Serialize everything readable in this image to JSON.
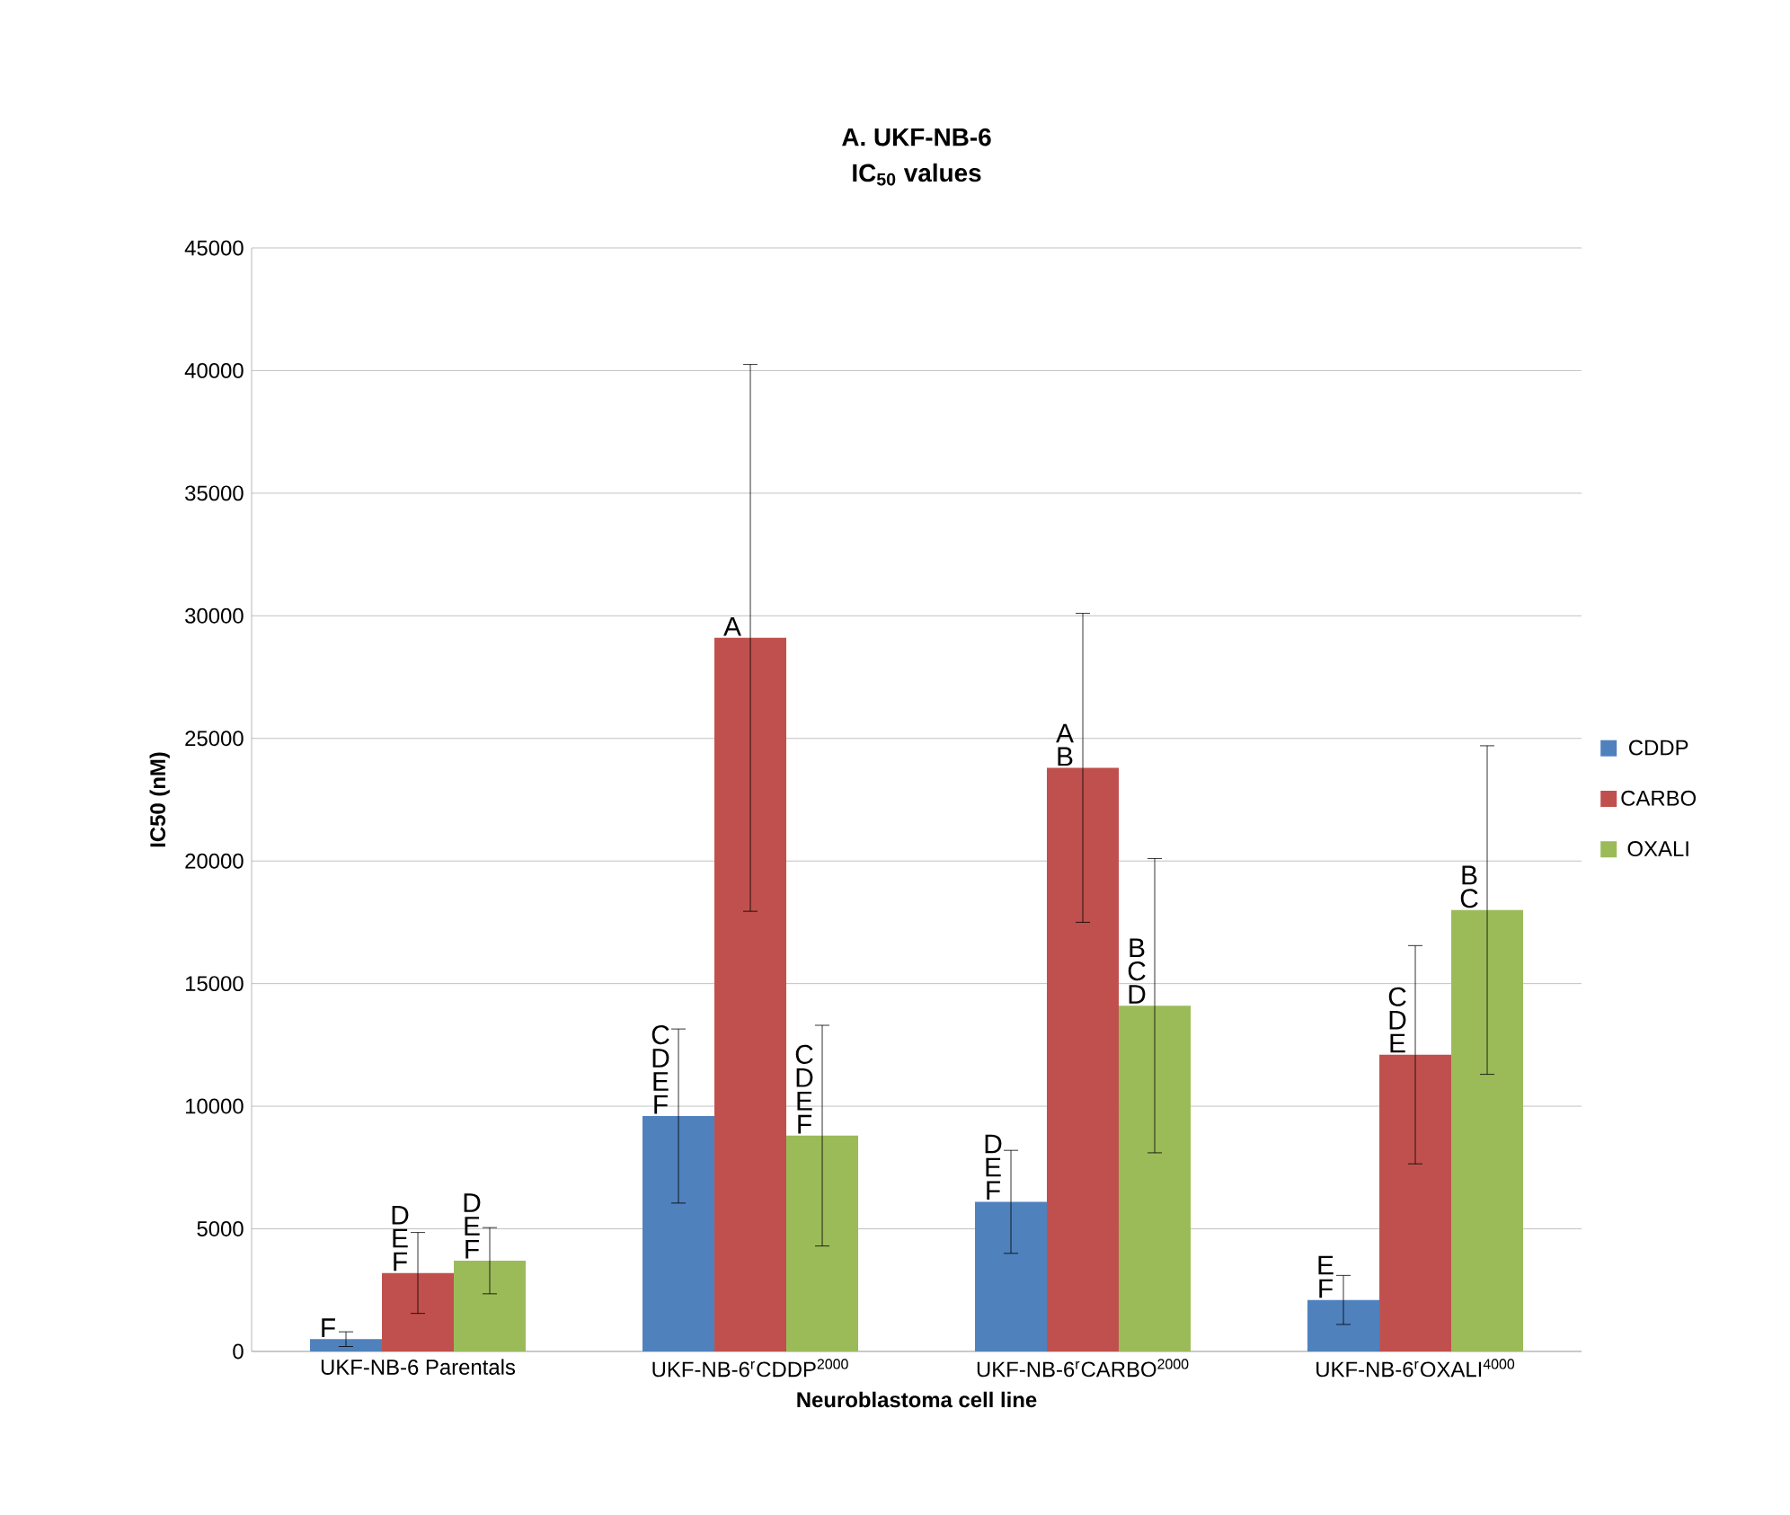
{
  "chart_data": {
    "type": "bar",
    "title": "A. UKF-NB-6",
    "subtitle": "IC$_{50}$ values",
    "xlabel": "Neuroblastoma cell line",
    "ylabel": "IC50 (nM)",
    "categories": [
      "UKF-NB-6 Parentals",
      "UKF-NB-6$^{r}$CDDP$^{2000}$",
      "UKF-NB-6$^{r}$CARBO$^{2000}$",
      "UKF-NB-6$^{r}$OXALI$^{4000}$"
    ],
    "series": [
      {
        "name": "CDDP",
        "color": "#4f81bd",
        "values": [
          500,
          9600,
          6100,
          2100
        ],
        "errors": [
          300,
          3550,
          2100,
          1000
        ]
      },
      {
        "name": "CARBO",
        "color": "#c0504d",
        "values": [
          3200,
          29100,
          23800,
          12100
        ],
        "errors": [
          1650,
          11150,
          6300,
          4450
        ]
      },
      {
        "name": "OXALI",
        "color": "#9bbb59",
        "values": [
          3700,
          8800,
          14100,
          18000
        ],
        "errors": [
          1350,
          4500,
          6000,
          6700
        ]
      }
    ],
    "ylim": [
      0,
      45000
    ],
    "yticks": [
      0,
      5000,
      10000,
      15000,
      20000,
      25000,
      30000,
      35000,
      40000,
      45000
    ],
    "grid": "y",
    "legend": "right",
    "annotations": [
      "F",
      "D E F",
      "D E F",
      "C D E F",
      "A",
      "C D E F",
      "D E F",
      "A B",
      "B C D",
      "E F",
      "C D E",
      "B C"
    ]
  }
}
